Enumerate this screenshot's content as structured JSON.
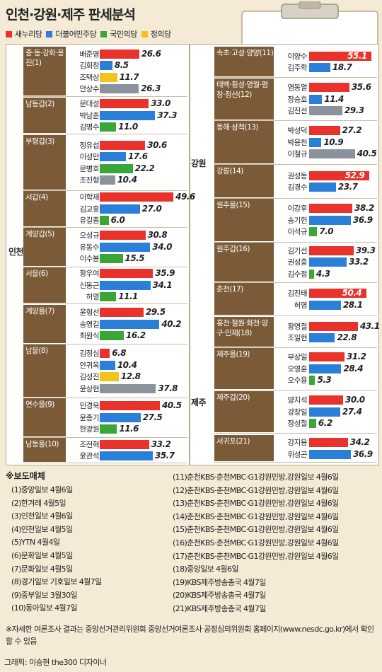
{
  "title": "인천·강원·제주 판세분석",
  "colors": {
    "saenuri": "#e8322b",
    "minju": "#2a80d8",
    "gukmin": "#3aa638",
    "jeongui": "#f5c21a",
    "other": "#8a939c"
  },
  "legend": [
    {
      "name": "새누리당",
      "color": "#e8322b"
    },
    {
      "name": "더불어민주당",
      "color": "#2a80d8"
    },
    {
      "name": "국민의당",
      "color": "#3aa638"
    },
    {
      "name": "정의당",
      "color": "#f5c21a"
    }
  ],
  "regions": {
    "incheon": "인천",
    "gangwon": "강원",
    "jeju": "제주"
  },
  "chart_data": {
    "type": "bar",
    "title": "인천·강원·제주 판세분석",
    "unit": "",
    "districts": [
      {
        "name": "중·동·강화·옹진(1)",
        "region": "인천",
        "candidates": [
          {
            "name": "배준영",
            "party": "saenuri",
            "value": 26.6
          },
          {
            "name": "김회창",
            "party": "minju",
            "value": 8.5
          },
          {
            "name": "조택상",
            "party": "jeongui",
            "value": 11.7
          },
          {
            "name": "안상수",
            "party": "other",
            "value": 26.3
          }
        ]
      },
      {
        "name": "남동갑(2)",
        "region": "인천",
        "candidates": [
          {
            "name": "문대성",
            "party": "saenuri",
            "value": 33.0
          },
          {
            "name": "박남춘",
            "party": "minju",
            "value": 37.3
          },
          {
            "name": "김명수",
            "party": "gukmin",
            "value": 11.0
          }
        ]
      },
      {
        "name": "부평갑(3)",
        "region": "인천",
        "candidates": [
          {
            "name": "정유섭",
            "party": "saenuri",
            "value": 30.6
          },
          {
            "name": "이성만",
            "party": "minju",
            "value": 17.6
          },
          {
            "name": "문병호",
            "party": "gukmin",
            "value": 22.2
          },
          {
            "name": "조진형",
            "party": "other",
            "value": 10.4
          }
        ]
      },
      {
        "name": "서갑(4)",
        "region": "인천",
        "candidates": [
          {
            "name": "이학재",
            "party": "saenuri",
            "value": 49.6
          },
          {
            "name": "김교흥",
            "party": "minju",
            "value": 27.0
          },
          {
            "name": "유길종",
            "party": "gukmin",
            "value": 6.0
          }
        ]
      },
      {
        "name": "계양갑(5)",
        "region": "인천",
        "candidates": [
          {
            "name": "오성규",
            "party": "saenuri",
            "value": 30.8
          },
          {
            "name": "유동수",
            "party": "minju",
            "value": 34.0
          },
          {
            "name": "이수봉",
            "party": "gukmin",
            "value": 15.5
          }
        ]
      },
      {
        "name": "서을(6)",
        "region": "인천",
        "candidates": [
          {
            "name": "황우여",
            "party": "saenuri",
            "value": 35.9
          },
          {
            "name": "신동근",
            "party": "minju",
            "value": 34.1
          },
          {
            "name": "허영",
            "party": "gukmin",
            "value": 11.1
          }
        ]
      },
      {
        "name": "계양을(7)",
        "region": "인천",
        "candidates": [
          {
            "name": "윤형선",
            "party": "saenuri",
            "value": 29.5
          },
          {
            "name": "송영길",
            "party": "minju",
            "value": 40.2
          },
          {
            "name": "최원식",
            "party": "gukmin",
            "value": 16.2
          }
        ]
      },
      {
        "name": "남을(8)",
        "region": "인천",
        "candidates": [
          {
            "name": "김정심",
            "party": "saenuri",
            "value": 6.8
          },
          {
            "name": "안귀옥",
            "party": "minju",
            "value": 10.4
          },
          {
            "name": "김성진",
            "party": "jeongui",
            "value": 12.8
          },
          {
            "name": "윤상현",
            "party": "other",
            "value": 37.8
          }
        ]
      },
      {
        "name": "연수을(9)",
        "region": "인천",
        "candidates": [
          {
            "name": "민경욱",
            "party": "saenuri",
            "value": 40.5
          },
          {
            "name": "윤종기",
            "party": "minju",
            "value": 27.5
          },
          {
            "name": "한광원",
            "party": "gukmin",
            "value": 11.6
          }
        ]
      },
      {
        "name": "남동을(10)",
        "region": "인천",
        "candidates": [
          {
            "name": "조전혁",
            "party": "saenuri",
            "value": 33.2
          },
          {
            "name": "윤관석",
            "party": "minju",
            "value": 35.7
          }
        ]
      },
      {
        "name": "속초·고성·양양(11)",
        "region": "강원",
        "candidates": [
          {
            "name": "이양수",
            "party": "saenuri",
            "value": 55.1
          },
          {
            "name": "김주학",
            "party": "minju",
            "value": 18.7
          }
        ]
      },
      {
        "name": "태백·횡성·영월·평창·정선(12)",
        "region": "강원",
        "candidates": [
          {
            "name": "염동열",
            "party": "saenuri",
            "value": 35.6
          },
          {
            "name": "장승호",
            "party": "minju",
            "value": 11.4
          },
          {
            "name": "김진선",
            "party": "other",
            "value": 29.3
          }
        ]
      },
      {
        "name": "동해·삼척(13)",
        "region": "강원",
        "candidates": [
          {
            "name": "박성덕",
            "party": "saenuri",
            "value": 27.2
          },
          {
            "name": "박응천",
            "party": "minju",
            "value": 10.9
          },
          {
            "name": "이철규",
            "party": "other",
            "value": 40.5
          }
        ]
      },
      {
        "name": "강릉(14)",
        "region": "강원",
        "candidates": [
          {
            "name": "권성동",
            "party": "saenuri",
            "value": 52.9
          },
          {
            "name": "김경수",
            "party": "minju",
            "value": 23.7
          }
        ]
      },
      {
        "name": "원주을(15)",
        "region": "강원",
        "candidates": [
          {
            "name": "이강후",
            "party": "saenuri",
            "value": 38.2
          },
          {
            "name": "송기헌",
            "party": "minju",
            "value": 36.9
          },
          {
            "name": "이석규",
            "party": "gukmin",
            "value": 7.0
          }
        ]
      },
      {
        "name": "원주갑(16)",
        "region": "강원",
        "candidates": [
          {
            "name": "김기선",
            "party": "saenuri",
            "value": 39.3
          },
          {
            "name": "권성중",
            "party": "minju",
            "value": 33.2
          },
          {
            "name": "김수정",
            "party": "gukmin",
            "value": 4.3
          }
        ]
      },
      {
        "name": "춘천(17)",
        "region": "강원",
        "candidates": [
          {
            "name": "김진태",
            "party": "saenuri",
            "value": 50.4
          },
          {
            "name": "허영",
            "party": "minju",
            "value": 28.1
          }
        ]
      },
      {
        "name": "홍천·철원·화천·양구·인제(18)",
        "region": "강원",
        "candidates": [
          {
            "name": "황영철",
            "party": "saenuri",
            "value": 43.1
          },
          {
            "name": "조일현",
            "party": "minju",
            "value": 22.8
          }
        ]
      },
      {
        "name": "제주을(19)",
        "region": "제주",
        "candidates": [
          {
            "name": "부상일",
            "party": "saenuri",
            "value": 31.2
          },
          {
            "name": "오영훈",
            "party": "minju",
            "value": 28.4
          },
          {
            "name": "오수용",
            "party": "gukmin",
            "value": 5.3
          }
        ]
      },
      {
        "name": "제주갑(20)",
        "region": "제주",
        "candidates": [
          {
            "name": "양치석",
            "party": "saenuri",
            "value": 30.0
          },
          {
            "name": "강창일",
            "party": "minju",
            "value": 27.4
          },
          {
            "name": "장성철",
            "party": "gukmin",
            "value": 6.2
          }
        ]
      },
      {
        "name": "서귀포(21)",
        "region": "제주",
        "candidates": [
          {
            "name": "강지용",
            "party": "saenuri",
            "value": 34.2
          },
          {
            "name": "위성곤",
            "party": "minju",
            "value": 36.9
          }
        ]
      }
    ]
  },
  "media": {
    "title": "※보도매체",
    "left": [
      "(1)중앙일보 4월6일",
      "(2)한겨레 4월5일",
      "(3)인천일보 4월6일",
      "(4)인천일보 4월5일",
      "(5)YTN 4월4일",
      "(6)문화일보 4월5일",
      "(7)문화일보 4월5일",
      "(8)경기일보 기호일보 4월7일",
      "(9)중부일보 3월30일",
      "(10)동아일보 4월7일"
    ],
    "right": [
      "(11)춘천KBS·춘천MBC·G1강원민방,강원일보 4월6일",
      "(12)춘천KBS·춘천MBC·G1강원민방,강원일보 4월6일",
      "(13)춘천KBS·춘천MBC·G1강원민방,강원일보 4월6일",
      "(14)춘천KBS·춘천MBC·G1강원민방,강원일보 4월6일",
      "(15)춘천KBS·춘천MBC·G1강원민방,강원일보 4월6일",
      "(16)춘천KBS·춘천MBC·G1강원민방,강원일보 4월6일",
      "(17)춘천KBS·춘천MBC·G1강원민방,강원일보 4월6일",
      "(18)중앙일보 4월6일",
      "(19)KBS제주방송총국 4월7일",
      "(20)KBS제주방송총국 4월7일",
      "(21)KBS제주방송총국 4월7일"
    ]
  },
  "footnote": "※자세한 여론조사 결과는 중앙선거관리위원회 중앙선거여론조사 공정심의위원회 홈페이지(www.nesdc.go.kr)에서 확인할 수 있음",
  "credit": "그래픽: 이승현 the300 디자이너"
}
